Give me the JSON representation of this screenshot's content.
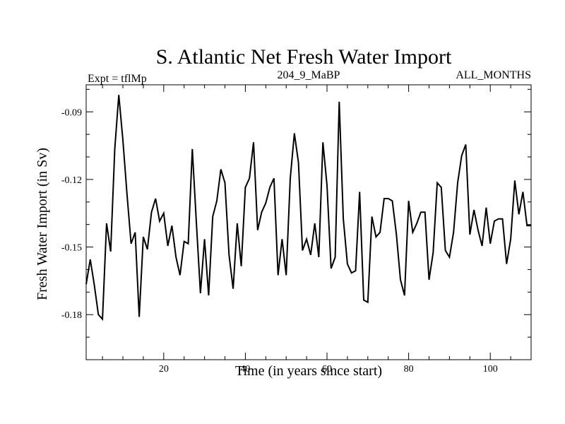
{
  "chart_data": {
    "type": "line",
    "title": "S. Atlantic Net Fresh Water Import",
    "subtitle_left": "Expt = tflMp",
    "subtitle_center": "204_9_MaBP",
    "subtitle_right": "ALL_MONTHS",
    "xlabel": "Time (in years since start)",
    "ylabel": "Fresh Water Import (in Sv)",
    "xlim": [
      1,
      110
    ],
    "ylim": [
      -0.2,
      -0.078
    ],
    "x_ticks": [
      20,
      40,
      60,
      80,
      100
    ],
    "x_tick_labels": [
      "20",
      "40",
      "60",
      "80",
      "100"
    ],
    "x_minor_step": 5,
    "y_ticks": [
      -0.09,
      -0.12,
      -0.15,
      -0.18
    ],
    "y_tick_labels": [
      "-0.09",
      "-0.12",
      "-0.15",
      "-0.18"
    ],
    "y_minor_step": 0.01,
    "grid": false,
    "x": [
      1,
      2,
      3,
      4,
      5,
      6,
      7,
      8,
      9,
      10,
      11,
      12,
      13,
      14,
      15,
      16,
      17,
      18,
      19,
      20,
      21,
      22,
      23,
      24,
      25,
      26,
      27,
      28,
      29,
      30,
      31,
      32,
      33,
      34,
      35,
      36,
      37,
      38,
      39,
      40,
      41,
      42,
      43,
      44,
      45,
      46,
      47,
      48,
      49,
      50,
      51,
      52,
      53,
      54,
      55,
      56,
      57,
      58,
      59,
      60,
      61,
      62,
      63,
      64,
      65,
      66,
      67,
      68,
      69,
      70,
      71,
      72,
      73,
      74,
      75,
      76,
      77,
      78,
      79,
      80,
      81,
      82,
      83,
      84,
      85,
      86,
      87,
      88,
      89,
      90,
      91,
      92,
      93,
      94,
      95,
      96,
      97,
      98,
      99,
      100,
      101,
      102,
      103,
      104,
      105,
      106,
      107,
      108,
      109,
      110
    ],
    "values": [
      -0.1665,
      -0.1555,
      -0.167,
      -0.18,
      -0.182,
      -0.1395,
      -0.152,
      -0.1065,
      -0.0825,
      -0.1025,
      -0.1265,
      -0.1485,
      -0.1435,
      -0.181,
      -0.1455,
      -0.151,
      -0.1345,
      -0.1285,
      -0.1385,
      -0.135,
      -0.1495,
      -0.1405,
      -0.1545,
      -0.1625,
      -0.1475,
      -0.1485,
      -0.1065,
      -0.1395,
      -0.1705,
      -0.1465,
      -0.1715,
      -0.1365,
      -0.1295,
      -0.1155,
      -0.1215,
      -0.1535,
      -0.1685,
      -0.1395,
      -0.1585,
      -0.1235,
      -0.1195,
      -0.1035,
      -0.1425,
      -0.1345,
      -0.1305,
      -0.1235,
      -0.1195,
      -0.1625,
      -0.1465,
      -0.1625,
      -0.1195,
      -0.0995,
      -0.1125,
      -0.1515,
      -0.1465,
      -0.1535,
      -0.1395,
      -0.1545,
      -0.1035,
      -0.1225,
      -0.1595,
      -0.1545,
      -0.0855,
      -0.1375,
      -0.1575,
      -0.1615,
      -0.1605,
      -0.1255,
      -0.1735,
      -0.1745,
      -0.1365,
      -0.1455,
      -0.1435,
      -0.1285,
      -0.1285,
      -0.1295,
      -0.1445,
      -0.1645,
      -0.1715,
      -0.1295,
      -0.1435,
      -0.1395,
      -0.1345,
      -0.1345,
      -0.1645,
      -0.1525,
      -0.1215,
      -0.1235,
      -0.1515,
      -0.1545,
      -0.1435,
      -0.1215,
      -0.1095,
      -0.1045,
      -0.1445,
      -0.1335,
      -0.1425,
      -0.1495,
      -0.1325,
      -0.1485,
      -0.1385,
      -0.1375,
      -0.1375,
      -0.1575,
      -0.1465,
      -0.1205,
      -0.1355,
      -0.1255,
      -0.1405,
      -0.1405
    ]
  }
}
